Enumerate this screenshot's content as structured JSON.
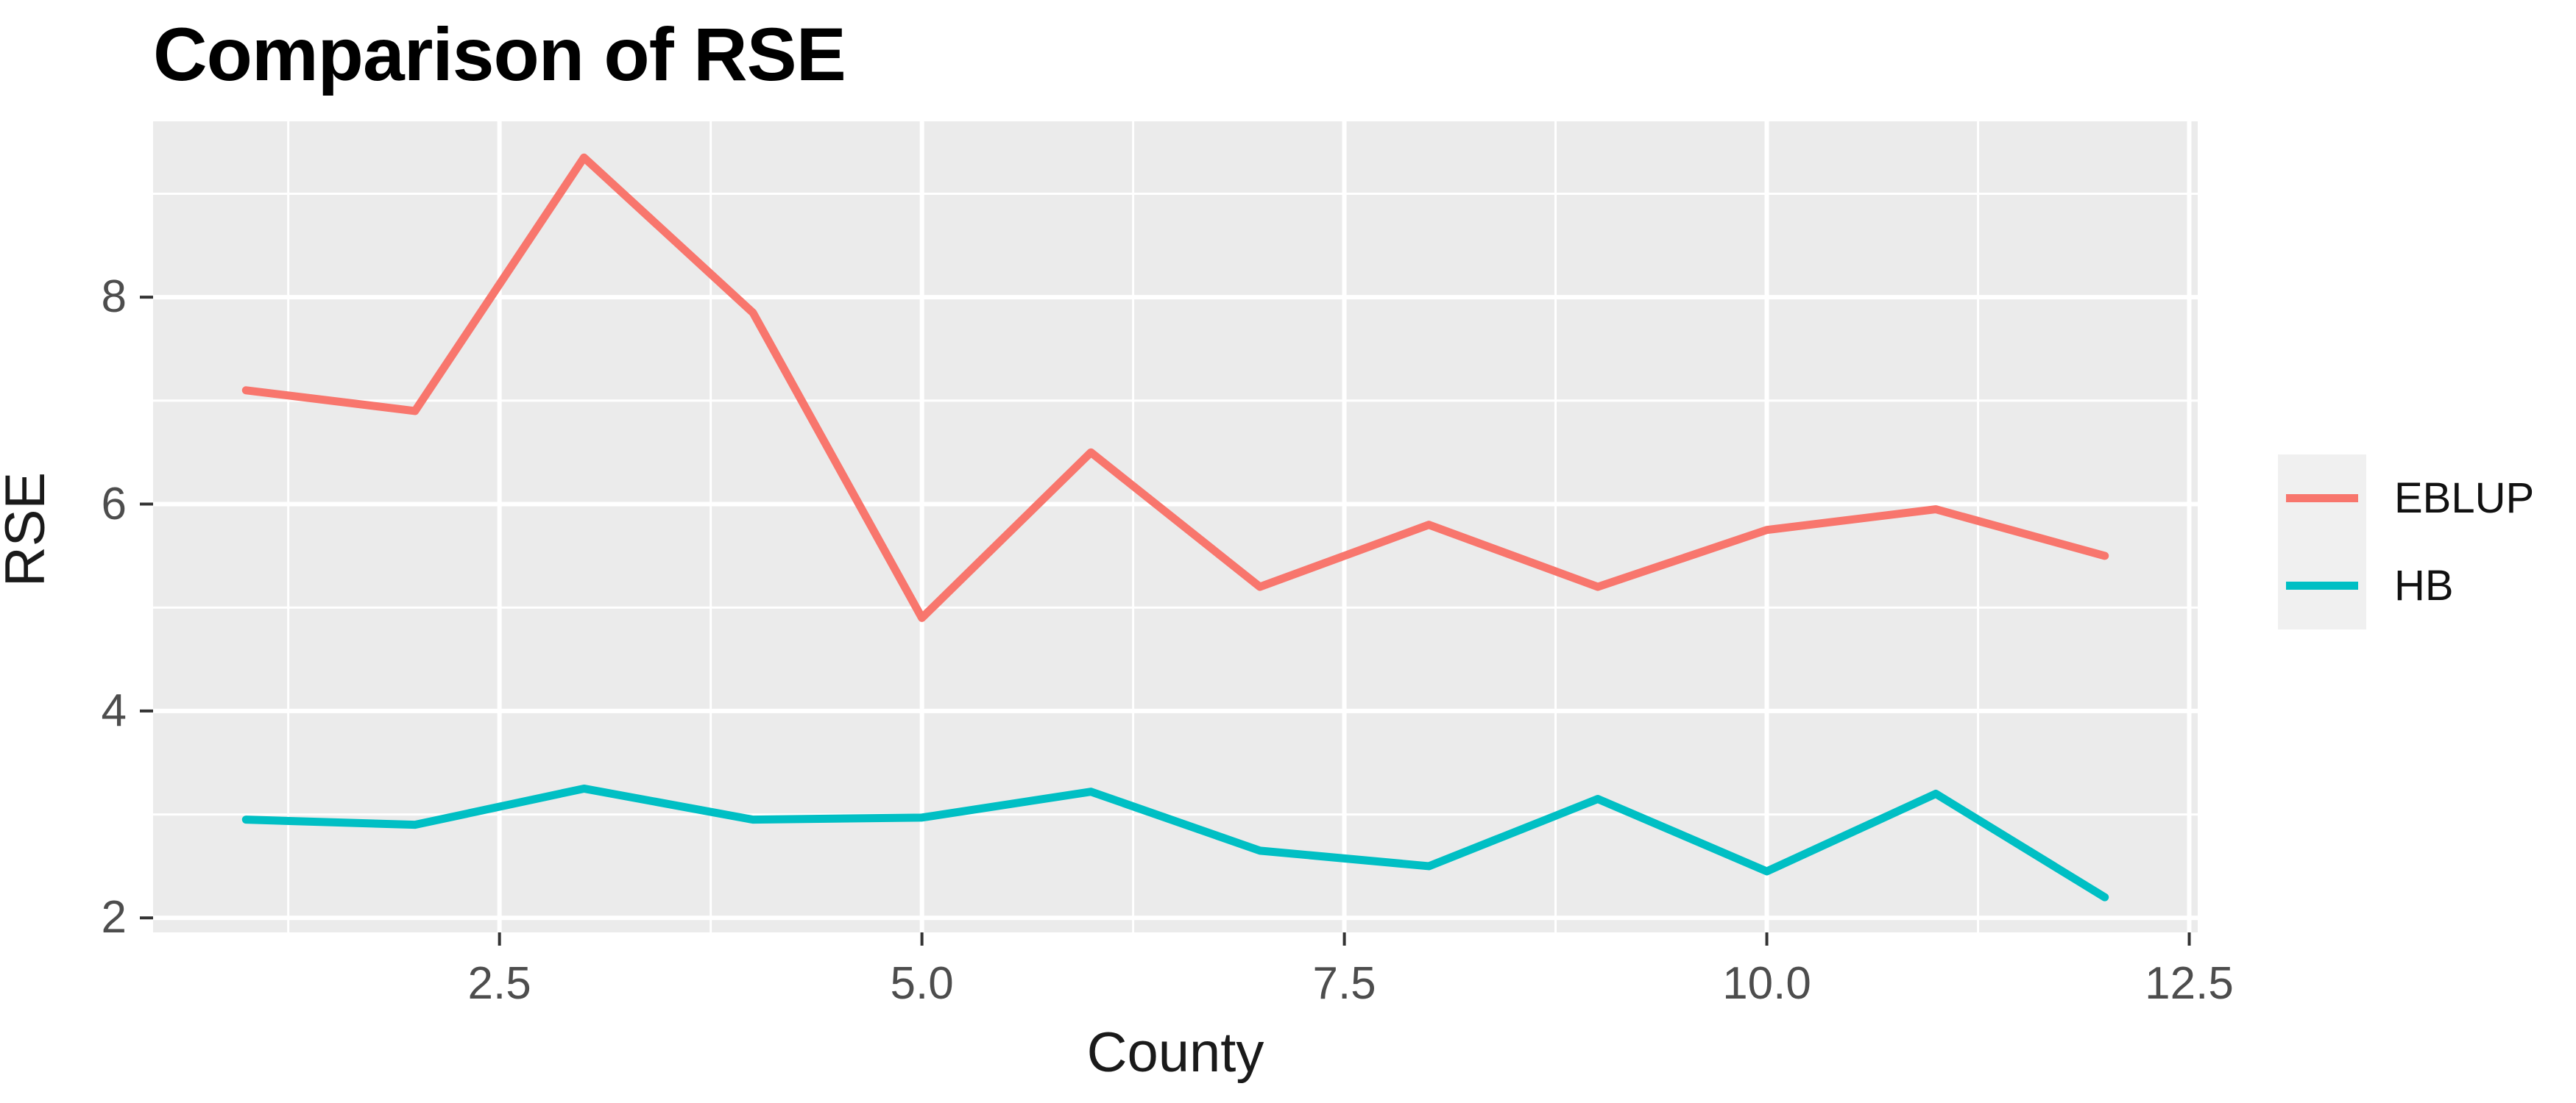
{
  "title": "Comparison of RSE",
  "x_axis": {
    "label": "County"
  },
  "y_axis": {
    "label": "RSE"
  },
  "legend": {
    "position": "right"
  },
  "colors": {
    "panel_background": "#EBEBEB",
    "gridline": "#FFFFFF",
    "tick_mark": "#333333",
    "tick_label": "#4D4D4D",
    "title_text": "#000000",
    "legend_key_background": "#F0F0F0",
    "eblup_line": "#F8766D",
    "hb_line": "#00BFC4"
  },
  "chart_data": {
    "type": "line",
    "title": "Comparison of RSE",
    "xlabel": "County",
    "ylabel": "RSE",
    "x": [
      1,
      2,
      3,
      4,
      5,
      6,
      7,
      8,
      9,
      10,
      11,
      12
    ],
    "series": [
      {
        "name": "EBLUP",
        "color": "#F8766D",
        "values": [
          7.1,
          6.9,
          9.35,
          7.85,
          4.9,
          6.5,
          5.2,
          5.8,
          5.2,
          5.75,
          5.95,
          5.5
        ]
      },
      {
        "name": "HB",
        "color": "#00BFC4",
        "values": [
          2.95,
          2.9,
          3.25,
          2.95,
          2.97,
          3.22,
          2.65,
          2.5,
          3.15,
          2.45,
          3.2,
          2.2
        ]
      }
    ],
    "x_domain": [
      0.45,
      12.55
    ],
    "y_domain": [
      1.86,
      9.7
    ],
    "x_ticks": [
      {
        "value": 2.5,
        "label": "2.5"
      },
      {
        "value": 5.0,
        "label": "5.0"
      },
      {
        "value": 7.5,
        "label": "7.5"
      },
      {
        "value": 10.0,
        "label": "10.0"
      },
      {
        "value": 12.5,
        "label": "12.5"
      }
    ],
    "y_ticks": [
      {
        "value": 2,
        "label": "2"
      },
      {
        "value": 4,
        "label": "4"
      },
      {
        "value": 6,
        "label": "6"
      },
      {
        "value": 8,
        "label": "8"
      }
    ],
    "x_minor_gridlines": [
      1.25,
      3.75,
      6.25,
      8.75,
      11.25
    ],
    "y_minor_gridlines": [
      3,
      5,
      7,
      9
    ],
    "grid": "on",
    "legend_position": "right"
  }
}
